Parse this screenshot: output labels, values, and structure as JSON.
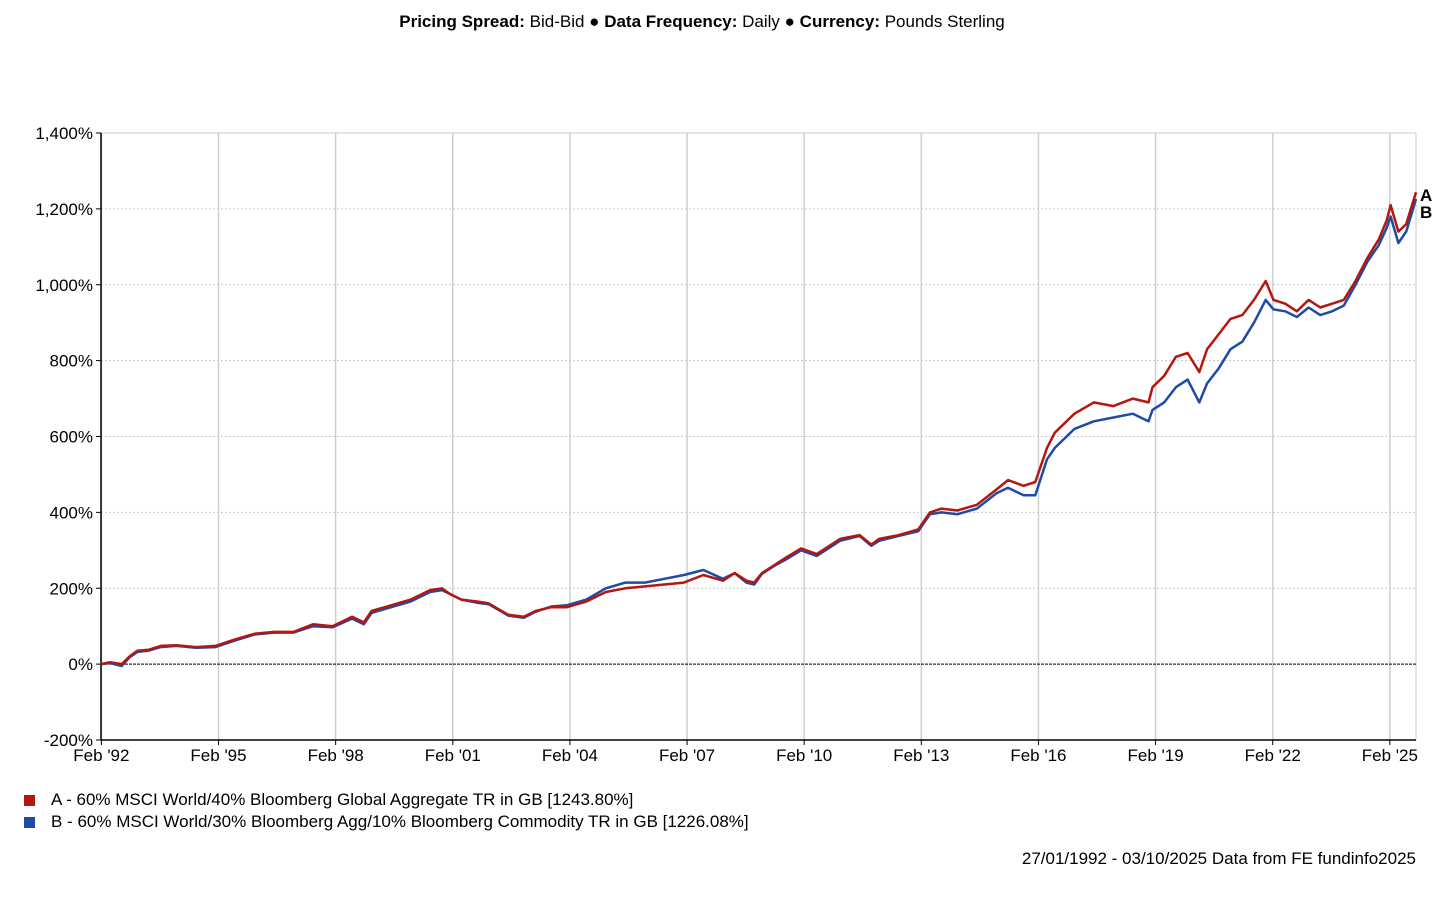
{
  "header": {
    "spread_label": "Pricing Spread:",
    "spread_value": "Bid-Bid",
    "sep": "●",
    "frequency_label": "Data Frequency:",
    "frequency_value": "Daily",
    "currency_label": "Currency:",
    "currency_value": "Pounds Sterling"
  },
  "chart_data": {
    "type": "line",
    "title": "",
    "xlabel": "",
    "ylabel": "",
    "x_range": [
      1992.07,
      2025.75
    ],
    "ylim": [
      -200,
      1400
    ],
    "y_ticks": [
      -200,
      0,
      200,
      400,
      600,
      800,
      1000,
      1200,
      1400
    ],
    "y_tick_labels": [
      "-200%",
      "0%",
      "200%",
      "400%",
      "600%",
      "800%",
      "1,000%",
      "1,200%",
      "1,400%"
    ],
    "x_ticks": [
      1992.08,
      1995.08,
      1998.08,
      2001.08,
      2004.08,
      2007.08,
      2010.08,
      2013.08,
      2016.08,
      2019.08,
      2022.08,
      2025.08
    ],
    "x_tick_labels": [
      "Feb '92",
      "Feb '95",
      "Feb '98",
      "Feb '01",
      "Feb '04",
      "Feb '07",
      "Feb '10",
      "Feb '13",
      "Feb '16",
      "Feb '19",
      "Feb '22",
      "Feb '25"
    ],
    "grid": true,
    "zero_line": true,
    "series": [
      {
        "name": "A - 60% MSCI World/40% Bloomberg Global Aggregate TR in GB [1243.80%]",
        "end_label": "A",
        "color": "#b3170f",
        "x": [
          1992.07,
          1992.3,
          1992.6,
          1992.8,
          1993.0,
          1993.3,
          1993.6,
          1994.0,
          1994.5,
          1995.0,
          1995.5,
          1996.0,
          1996.5,
          1997.0,
          1997.5,
          1998.0,
          1998.5,
          1998.8,
          1999.0,
          1999.5,
          2000.0,
          2000.5,
          2000.8,
          2001.0,
          2001.3,
          2001.7,
          2002.0,
          2002.5,
          2002.9,
          2003.2,
          2003.6,
          2004.0,
          2004.5,
          2005.0,
          2005.5,
          2006.0,
          2006.5,
          2007.0,
          2007.5,
          2008.0,
          2008.3,
          2008.6,
          2008.8,
          2009.0,
          2009.3,
          2009.6,
          2010.0,
          2010.4,
          2010.7,
          2011.0,
          2011.5,
          2011.8,
          2012.0,
          2012.5,
          2013.0,
          2013.3,
          2013.6,
          2014.0,
          2014.5,
          2015.0,
          2015.3,
          2015.7,
          2016.0,
          2016.3,
          2016.5,
          2016.8,
          2017.0,
          2017.5,
          2018.0,
          2018.5,
          2018.9,
          2019.0,
          2019.3,
          2019.6,
          2019.9,
          2020.2,
          2020.4,
          2020.7,
          2021.0,
          2021.3,
          2021.6,
          2021.9,
          2022.1,
          2022.4,
          2022.7,
          2023.0,
          2023.3,
          2023.6,
          2023.9,
          2024.2,
          2024.5,
          2024.8,
          2025.0,
          2025.1,
          2025.3,
          2025.5,
          2025.75
        ],
        "values": [
          0,
          5,
          0,
          20,
          35,
          38,
          48,
          50,
          45,
          48,
          65,
          80,
          85,
          85,
          105,
          100,
          125,
          110,
          140,
          155,
          170,
          195,
          200,
          185,
          170,
          165,
          160,
          130,
          125,
          140,
          150,
          150,
          165,
          190,
          200,
          205,
          210,
          215,
          235,
          220,
          240,
          220,
          215,
          240,
          260,
          280,
          305,
          290,
          310,
          330,
          340,
          315,
          330,
          340,
          355,
          400,
          410,
          405,
          420,
          460,
          485,
          470,
          480,
          570,
          610,
          640,
          660,
          690,
          680,
          700,
          690,
          730,
          760,
          810,
          820,
          770,
          830,
          870,
          910,
          920,
          960,
          1010,
          960,
          950,
          930,
          960,
          940,
          950,
          960,
          1010,
          1070,
          1120,
          1170,
          1210,
          1140,
          1160,
          1243.8
        ]
      },
      {
        "name": "B - 60% MSCI World/30% Bloomberg Agg/10% Bloomberg Commodity TR in GB [1226.08%]",
        "end_label": "B",
        "color": "#1f4aa8",
        "x": [
          1992.07,
          1992.3,
          1992.6,
          1992.8,
          1993.0,
          1993.3,
          1993.6,
          1994.0,
          1994.5,
          1995.0,
          1995.5,
          1996.0,
          1996.5,
          1997.0,
          1997.5,
          1998.0,
          1998.5,
          1998.8,
          1999.0,
          1999.5,
          2000.0,
          2000.5,
          2000.8,
          2001.0,
          2001.3,
          2001.7,
          2002.0,
          2002.5,
          2002.9,
          2003.2,
          2003.6,
          2004.0,
          2004.5,
          2005.0,
          2005.5,
          2006.0,
          2006.5,
          2007.0,
          2007.5,
          2008.0,
          2008.3,
          2008.6,
          2008.8,
          2009.0,
          2009.3,
          2009.6,
          2010.0,
          2010.4,
          2010.7,
          2011.0,
          2011.5,
          2011.8,
          2012.0,
          2012.5,
          2013.0,
          2013.3,
          2013.6,
          2014.0,
          2014.5,
          2015.0,
          2015.3,
          2015.7,
          2016.0,
          2016.3,
          2016.5,
          2016.8,
          2017.0,
          2017.5,
          2018.0,
          2018.5,
          2018.9,
          2019.0,
          2019.3,
          2019.6,
          2019.9,
          2020.2,
          2020.4,
          2020.7,
          2021.0,
          2021.3,
          2021.6,
          2021.9,
          2022.1,
          2022.4,
          2022.7,
          2023.0,
          2023.3,
          2023.6,
          2023.9,
          2024.2,
          2024.5,
          2024.8,
          2025.0,
          2025.1,
          2025.3,
          2025.5,
          2025.75
        ],
        "values": [
          0,
          3,
          -5,
          18,
          32,
          36,
          45,
          48,
          43,
          45,
          62,
          78,
          83,
          83,
          100,
          97,
          120,
          105,
          135,
          150,
          165,
          190,
          195,
          185,
          170,
          162,
          158,
          128,
          122,
          138,
          152,
          155,
          170,
          200,
          215,
          215,
          225,
          235,
          248,
          225,
          240,
          215,
          210,
          238,
          258,
          275,
          300,
          285,
          305,
          325,
          338,
          312,
          325,
          338,
          350,
          395,
          400,
          395,
          410,
          450,
          465,
          445,
          445,
          540,
          570,
          600,
          620,
          640,
          650,
          660,
          640,
          670,
          690,
          730,
          750,
          690,
          740,
          780,
          830,
          850,
          900,
          960,
          935,
          930,
          915,
          940,
          920,
          930,
          945,
          1000,
          1060,
          1105,
          1150,
          1180,
          1110,
          1140,
          1226.08
        ]
      }
    ]
  },
  "legend": [
    {
      "text": "A - 60% MSCI World/40% Bloomberg Global Aggregate TR in GB [1243.80%]",
      "color": "#b3170f"
    },
    {
      "text": "B - 60% MSCI World/30% Bloomberg Agg/10% Bloomberg Commodity TR in GB [1226.08%]",
      "color": "#1f4aa8"
    }
  ],
  "footer": {
    "date_range": "27/01/1992 - 03/10/2025",
    "source": "Data from FE fundinfo2025"
  }
}
